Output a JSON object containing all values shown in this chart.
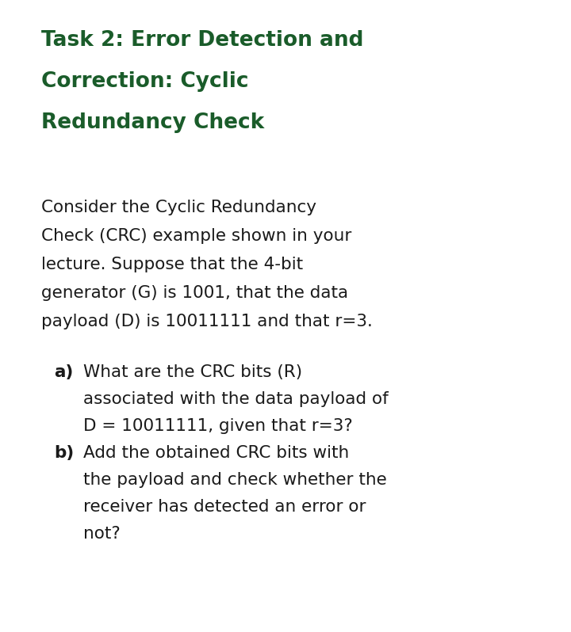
{
  "background_color": "#ffffff",
  "title_color": "#1a5c2a",
  "body_color": "#1a1a1a",
  "title_lines": [
    "Task 2: Error Detection and",
    "Correction: Cyclic",
    "Redundancy Check"
  ],
  "body_lines": [
    "Consider the Cyclic Redundancy",
    "Check (CRC) example shown in your",
    "lecture. Suppose that the 4-bit",
    "generator (G) is 1001, that the data",
    "payload (D) is 10011111 and that r=3."
  ],
  "item_a_lines": [
    "What are the CRC bits (R)",
    "associated with the data payload of",
    "D = 10011111, given that r=3?"
  ],
  "item_b_lines": [
    "Add the obtained CRC bits with",
    "the payload and check whether the",
    "receiver has detected an error or",
    "not?"
  ],
  "title_fontsize": 19,
  "body_fontsize": 15.5,
  "figwidth": 7.2,
  "figheight": 7.98,
  "dpi": 100
}
